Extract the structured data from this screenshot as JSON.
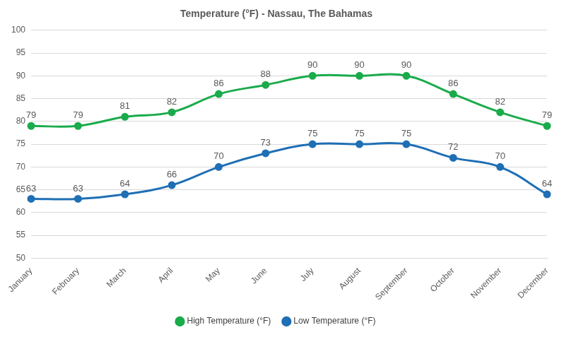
{
  "chart_data": {
    "type": "line",
    "title": "Temperature (°F) - Nassau, The Bahamas",
    "categories": [
      "January",
      "February",
      "March",
      "April",
      "May",
      "June",
      "July",
      "August",
      "September",
      "October",
      "November",
      "December"
    ],
    "series": [
      {
        "name": "High Temperature (°F)",
        "color": "#1aab4b",
        "marker": "circle",
        "values": [
          79,
          79,
          81,
          82,
          86,
          88,
          90,
          90,
          90,
          86,
          82,
          79
        ]
      },
      {
        "name": "Low Temperature (°F)",
        "color": "#1f6fb5",
        "marker": "circle",
        "values": [
          63,
          63,
          64,
          66,
          70,
          73,
          75,
          75,
          75,
          72,
          70,
          64
        ]
      }
    ],
    "ylim": [
      50,
      100
    ],
    "yticks": [
      50,
      55,
      60,
      65,
      70,
      75,
      80,
      85,
      90,
      95,
      100
    ],
    "grid": true,
    "legend": "bottom",
    "data_labels": true
  }
}
